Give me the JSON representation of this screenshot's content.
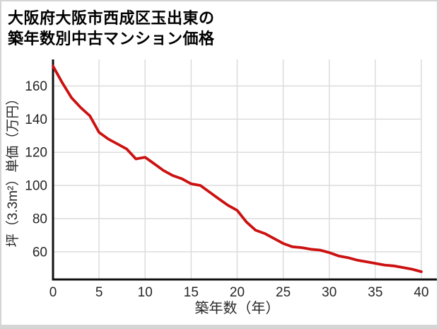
{
  "title": {
    "line1": "大阪府大阪市西成区玉出東の",
    "line2": "築年数別中古マンション価格"
  },
  "chart_data": {
    "type": "line",
    "title": "大阪府大阪市西成区玉出東の築年数別中古マンション価格",
    "xlabel": "築年数（年）",
    "ylabel": "坪（3.3m²）単価（万円）",
    "x": [
      0,
      1,
      2,
      3,
      4,
      5,
      6,
      7,
      8,
      9,
      10,
      11,
      12,
      13,
      14,
      15,
      16,
      17,
      18,
      19,
      20,
      21,
      22,
      23,
      24,
      25,
      26,
      27,
      28,
      29,
      30,
      31,
      32,
      33,
      34,
      35,
      36,
      37,
      38,
      39,
      40
    ],
    "values": [
      172,
      162,
      153,
      147,
      142,
      132,
      128,
      125,
      122,
      116,
      117,
      113,
      109,
      106,
      104,
      101,
      100,
      96,
      92,
      88,
      85,
      78,
      73,
      71,
      68,
      65,
      63,
      62.5,
      61.5,
      61,
      59.5,
      57.5,
      56.5,
      55,
      54,
      53,
      52,
      51.5,
      50.5,
      49.5,
      48
    ],
    "x_ticks": [
      0,
      5,
      10,
      15,
      20,
      25,
      30,
      35,
      40
    ],
    "y_ticks": [
      60,
      80,
      100,
      120,
      140,
      160
    ],
    "xlim": [
      0,
      40
    ],
    "ylim": [
      43.3,
      176
    ],
    "grid": true,
    "legend": "none",
    "line_color": "#cc1111",
    "grid_color": "#dcdcdc",
    "axis_color": "#111111",
    "tick_color": "#262626"
  }
}
